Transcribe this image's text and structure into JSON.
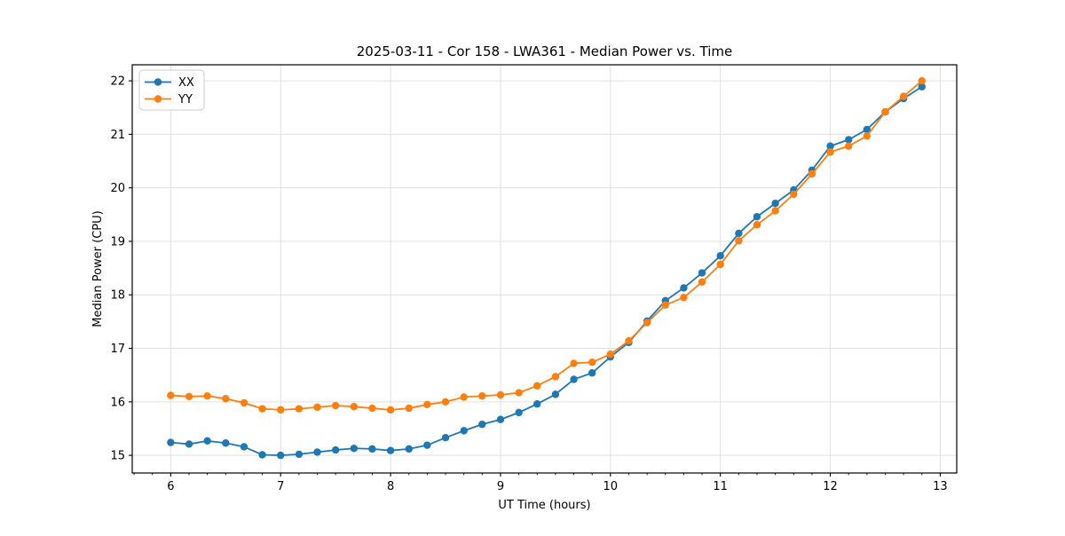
{
  "page": {
    "background": "#ffffff"
  },
  "chart_data": {
    "type": "line",
    "title": "2025-03-11 - Cor 158 - LWA361 - Median Power vs. Time",
    "xlabel": "UT Time (hours)",
    "ylabel": "Median Power (CPU)",
    "xlim": [
      5.65,
      13.15
    ],
    "ylim": [
      14.67,
      22.3
    ],
    "xticks": [
      6,
      7,
      8,
      9,
      10,
      11,
      12,
      13
    ],
    "yticks": [
      15,
      16,
      17,
      18,
      19,
      20,
      21,
      22
    ],
    "x_minor_step": 0.1667,
    "grid": true,
    "grid_color": "#e0e0e0",
    "axis_color": "#000000",
    "legend_position": "upper-left",
    "x": [
      6.0,
      6.167,
      6.333,
      6.5,
      6.667,
      6.833,
      7.0,
      7.167,
      7.333,
      7.5,
      7.667,
      7.833,
      8.0,
      8.167,
      8.333,
      8.5,
      8.667,
      8.833,
      9.0,
      9.167,
      9.333,
      9.5,
      9.667,
      9.833,
      10.0,
      10.167,
      10.333,
      10.5,
      10.667,
      10.833,
      11.0,
      11.167,
      11.333,
      11.5,
      11.667,
      11.833,
      12.0,
      12.167,
      12.333,
      12.5,
      12.667,
      12.833
    ],
    "series": [
      {
        "name": "XX",
        "color": "#1f77b4",
        "values": [
          15.24,
          15.21,
          15.27,
          15.23,
          15.16,
          15.01,
          15.0,
          15.02,
          15.06,
          15.1,
          15.13,
          15.12,
          15.09,
          15.12,
          15.19,
          15.33,
          15.46,
          15.58,
          15.67,
          15.8,
          15.96,
          16.14,
          16.42,
          16.54,
          16.84,
          17.11,
          17.51,
          17.89,
          18.13,
          18.41,
          18.73,
          19.15,
          19.46,
          19.71,
          19.96,
          20.33,
          20.78,
          20.9,
          21.09,
          21.42,
          21.67,
          21.89
        ]
      },
      {
        "name": "YY",
        "color": "#ff7f0e",
        "values": [
          16.12,
          16.1,
          16.11,
          16.06,
          15.98,
          15.87,
          15.85,
          15.87,
          15.9,
          15.93,
          15.91,
          15.88,
          15.85,
          15.88,
          15.95,
          16.0,
          16.09,
          16.11,
          16.13,
          16.17,
          16.3,
          16.47,
          16.72,
          16.74,
          16.89,
          17.14,
          17.48,
          17.81,
          17.95,
          18.24,
          18.57,
          19.01,
          19.31,
          19.57,
          19.88,
          20.26,
          20.67,
          20.78,
          20.97,
          21.42,
          21.71,
          22.0
        ]
      }
    ]
  }
}
